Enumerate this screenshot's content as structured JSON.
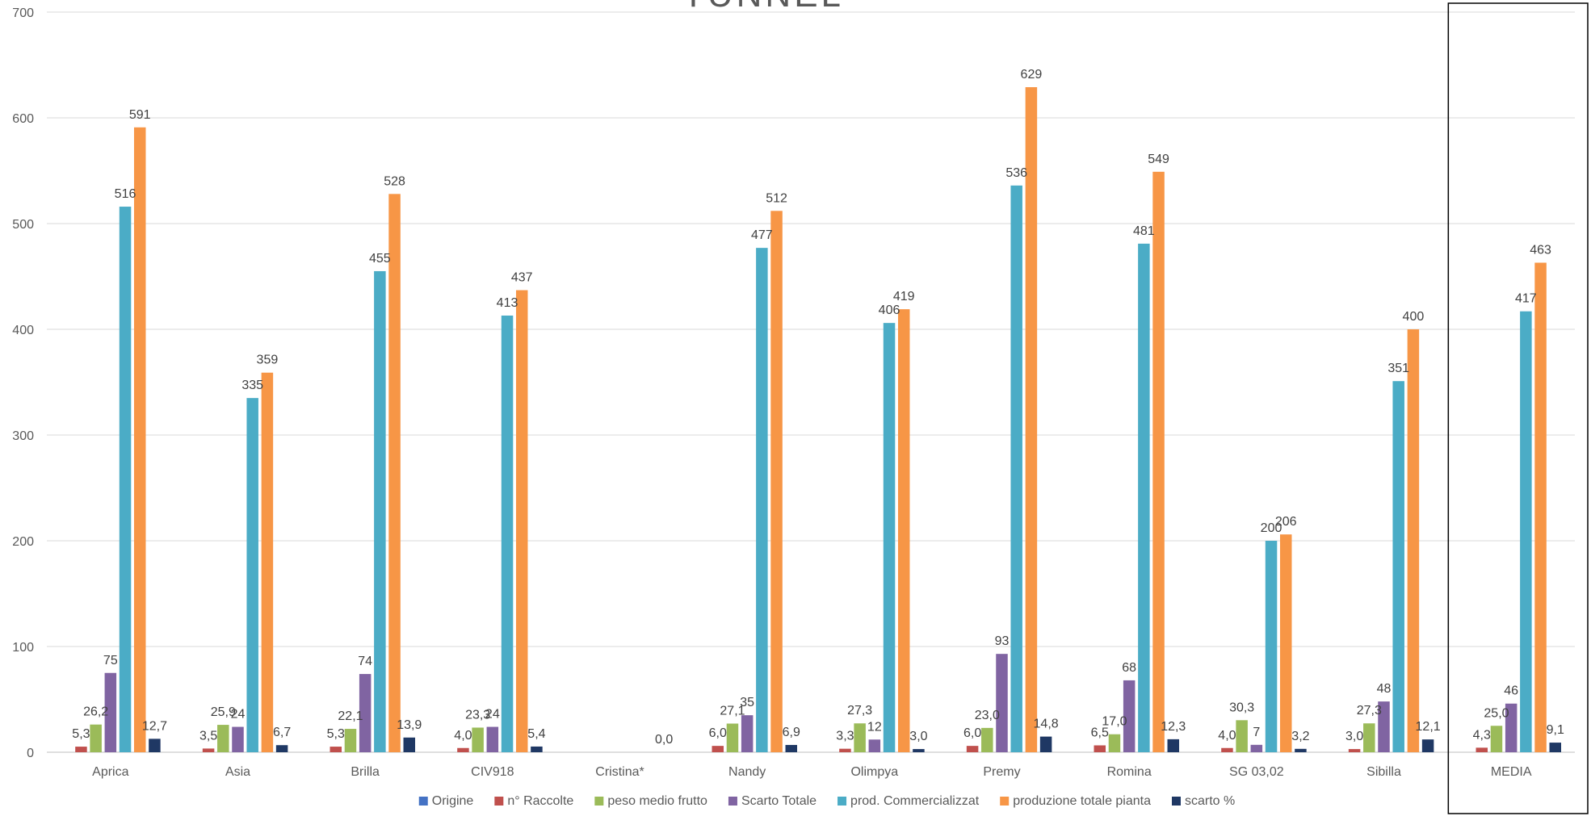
{
  "chart_data": {
    "type": "bar",
    "title": "TUNNEL",
    "categories": [
      "Aprica",
      "Asia",
      "Brilla",
      "CIV918",
      "Cristina*",
      "Nandy",
      "Olimpya",
      "Premy",
      "Romina",
      "SG 03,02",
      "Sibilla",
      "MEDIA"
    ],
    "ylim": [
      0,
      700
    ],
    "yticks": [
      0,
      100,
      200,
      300,
      400,
      500,
      600,
      700
    ],
    "grid": true,
    "legend_position": "bottom",
    "highlighted_category": "MEDIA",
    "series": [
      {
        "name": "Origine",
        "color": "#4472C4",
        "values": [
          null,
          null,
          null,
          null,
          null,
          null,
          null,
          null,
          null,
          null,
          null,
          null
        ],
        "labels": [
          "",
          "",
          "",
          "",
          "",
          "",
          "",
          "",
          "",
          "",
          "",
          ""
        ]
      },
      {
        "name": "n° Raccolte",
        "color": "#C0504D",
        "values": [
          5.3,
          3.5,
          5.3,
          4.0,
          null,
          6.0,
          3.3,
          6.0,
          6.5,
          4.0,
          3.0,
          4.3
        ],
        "labels": [
          "5,3",
          "3,5",
          "5,3",
          "4,0",
          "",
          "6,0",
          "3,3",
          "6,0",
          "6,5",
          "4,0",
          "3,0",
          "4,3"
        ]
      },
      {
        "name": "peso medio frutto",
        "color": "#9BBB59",
        "values": [
          26.2,
          25.9,
          22.1,
          23.3,
          null,
          27.1,
          27.3,
          23.0,
          17.0,
          30.3,
          27.3,
          25.0
        ],
        "labels": [
          "26,2",
          "25,9",
          "22,1",
          "23,3",
          "",
          "27,1",
          "27,3",
          "23,0",
          "17,0",
          "30,3",
          "27,3",
          "25,0"
        ]
      },
      {
        "name": "Scarto Totale",
        "color": "#8064A2",
        "values": [
          75,
          24,
          74,
          24,
          null,
          35,
          12,
          93,
          68,
          7,
          48,
          46
        ],
        "labels": [
          "75",
          "24",
          "74",
          "24",
          "",
          "35",
          "12",
          "93",
          "68",
          "7",
          "48",
          "46"
        ]
      },
      {
        "name": "prod. Commercializzat",
        "color": "#4BACC6",
        "values": [
          516,
          335,
          455,
          413,
          null,
          477,
          406,
          536,
          481,
          200,
          351,
          417
        ],
        "labels": [
          "516",
          "335",
          "455",
          "413",
          "",
          "477",
          "406",
          "536",
          "481",
          "200",
          "351",
          "417"
        ]
      },
      {
        "name": "produzione totale pianta",
        "color": "#F79646",
        "values": [
          591,
          359,
          528,
          437,
          null,
          512,
          419,
          629,
          549,
          206,
          400,
          463
        ],
        "labels": [
          "591",
          "359",
          "528",
          "437",
          "",
          "512",
          "419",
          "629",
          "549",
          "206",
          "400",
          "463"
        ]
      },
      {
        "name": "scarto %",
        "color": "#1F3864",
        "values": [
          12.7,
          6.7,
          13.9,
          5.4,
          0.0,
          6.9,
          3.0,
          14.8,
          12.3,
          3.2,
          12.1,
          9.1
        ],
        "labels": [
          "12,7",
          "6,7",
          "13,9",
          "5,4",
          "0,0",
          "6,9",
          "3,0",
          "14,8",
          "12,3",
          "3,2",
          "12,1",
          "9,1"
        ]
      }
    ]
  }
}
